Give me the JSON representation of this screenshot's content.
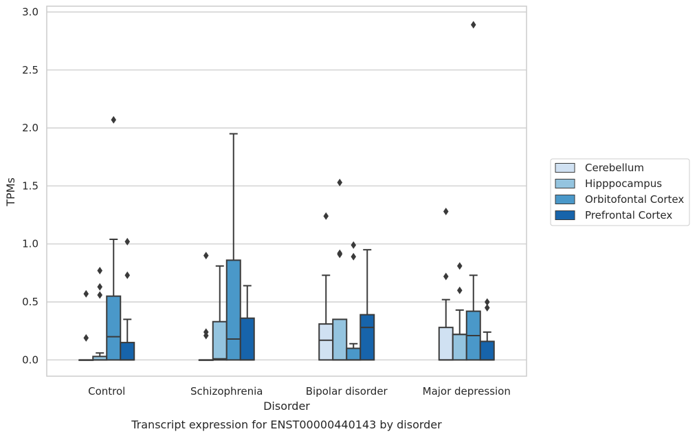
{
  "chart_data": {
    "type": "box",
    "title": "",
    "caption": "Transcript expression for ENST00000440143 by disorder",
    "xlabel": "Disorder",
    "ylabel": "TPMs",
    "ylim": [
      -0.14,
      3.05
    ],
    "yticks": [
      0.0,
      0.5,
      1.0,
      1.5,
      2.0,
      2.5,
      3.0
    ],
    "ytick_labels": [
      "0.0",
      "0.5",
      "1.0",
      "1.5",
      "2.0",
      "2.5",
      "3.0"
    ],
    "grid": "horizontal",
    "legend_position": "right",
    "categories": [
      "Control",
      "Schizophrenia",
      "Bipolar disorder",
      "Major depression"
    ],
    "series": [
      {
        "name": "Cerebellum",
        "color": "#d0e1f2",
        "boxes": [
          {
            "q1": 0.0,
            "median": 0.0,
            "q3": 0.0,
            "whisker_low": 0.0,
            "whisker_high": 0.0,
            "outliers": [
              0.19,
              0.57
            ]
          },
          {
            "q1": 0.0,
            "median": 0.0,
            "q3": 0.0,
            "whisker_low": 0.0,
            "whisker_high": 0.0,
            "outliers": [
              0.21,
              0.24,
              0.9
            ]
          },
          {
            "q1": 0.0,
            "median": 0.17,
            "q3": 0.31,
            "whisker_low": 0.0,
            "whisker_high": 0.73,
            "outliers": [
              1.24
            ]
          },
          {
            "q1": 0.0,
            "median": 0.0,
            "q3": 0.28,
            "whisker_low": 0.0,
            "whisker_high": 0.52,
            "outliers": [
              0.72,
              1.28
            ]
          }
        ]
      },
      {
        "name": "Hipppocampus",
        "color": "#94c4df",
        "boxes": [
          {
            "q1": 0.0,
            "median": 0.0,
            "q3": 0.03,
            "whisker_low": 0.0,
            "whisker_high": 0.06,
            "outliers": [
              0.56,
              0.63,
              0.77
            ]
          },
          {
            "q1": 0.0,
            "median": 0.01,
            "q3": 0.33,
            "whisker_low": 0.0,
            "whisker_high": 0.81,
            "outliers": []
          },
          {
            "q1": 0.0,
            "median": 0.0,
            "q3": 0.35,
            "whisker_low": 0.0,
            "whisker_high": 0.35,
            "outliers": [
              0.91,
              0.92,
              1.53
            ]
          },
          {
            "q1": 0.0,
            "median": 0.22,
            "q3": 0.22,
            "whisker_low": 0.0,
            "whisker_high": 0.43,
            "outliers": [
              0.6,
              0.81
            ]
          }
        ]
      },
      {
        "name": "Orbitofontal Cortex",
        "color": "#4a98c9",
        "boxes": [
          {
            "q1": 0.0,
            "median": 0.2,
            "q3": 0.55,
            "whisker_low": 0.0,
            "whisker_high": 1.04,
            "outliers": [
              2.07
            ]
          },
          {
            "q1": 0.0,
            "median": 0.18,
            "q3": 0.86,
            "whisker_low": 0.0,
            "whisker_high": 1.95,
            "outliers": []
          },
          {
            "q1": 0.0,
            "median": 0.0,
            "q3": 0.1,
            "whisker_low": 0.0,
            "whisker_high": 0.14,
            "outliers": [
              0.89,
              0.99
            ]
          },
          {
            "q1": 0.0,
            "median": 0.21,
            "q3": 0.42,
            "whisker_low": 0.0,
            "whisker_high": 0.73,
            "outliers": [
              2.89
            ]
          }
        ]
      },
      {
        "name": "Prefrontal Cortex",
        "color": "#1764ab",
        "boxes": [
          {
            "q1": 0.0,
            "median": 0.0,
            "q3": 0.15,
            "whisker_low": 0.0,
            "whisker_high": 0.35,
            "outliers": [
              0.73,
              1.02
            ]
          },
          {
            "q1": 0.0,
            "median": 0.0,
            "q3": 0.36,
            "whisker_low": 0.0,
            "whisker_high": 0.64,
            "outliers": []
          },
          {
            "q1": 0.0,
            "median": 0.28,
            "q3": 0.39,
            "whisker_low": 0.0,
            "whisker_high": 0.95,
            "outliers": []
          },
          {
            "q1": 0.0,
            "median": 0.0,
            "q3": 0.16,
            "whisker_low": 0.0,
            "whisker_high": 0.24,
            "outliers": [
              0.45,
              0.5
            ]
          }
        ]
      }
    ]
  }
}
